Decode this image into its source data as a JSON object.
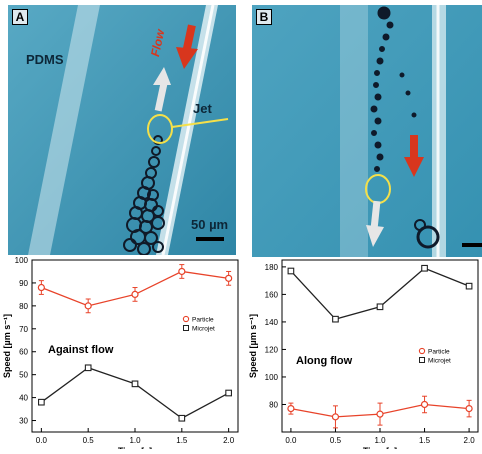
{
  "panels": [
    {
      "letter": "A",
      "labels": {
        "material": "PDMS",
        "flow": "Flow",
        "jet": "Jet",
        "scale": "50 µm"
      }
    },
    {
      "letter": "B"
    }
  ],
  "colors": {
    "particle": "#e8432a",
    "microjet": "#222222",
    "flow_arrow": "#d8361d",
    "jet_arrow": "#e6e6e6",
    "highlight": "#f4e04a"
  },
  "chart_data": [
    {
      "type": "line",
      "annotation": "Against flow",
      "xlabel": "Time [s]",
      "ylabel": "Speed [µm s⁻¹]",
      "x": [
        0.0,
        0.5,
        1.0,
        1.5,
        2.0
      ],
      "xlim": [
        -0.1,
        2.1
      ],
      "ylim": [
        25,
        100
      ],
      "xticks": [
        "0.0",
        "0.5",
        "1.0",
        "1.5",
        "2.0"
      ],
      "yticks": [
        30,
        40,
        50,
        60,
        70,
        80,
        90,
        100
      ],
      "legend_position": "top-right",
      "series": [
        {
          "name": "Particle",
          "marker": "circle",
          "values": [
            88,
            80,
            85,
            95,
            92
          ],
          "errors": [
            3,
            3,
            3,
            3,
            3
          ]
        },
        {
          "name": "Microjet",
          "marker": "square",
          "values": [
            38,
            53,
            46,
            31,
            42
          ]
        }
      ]
    },
    {
      "type": "line",
      "annotation": "Along flow",
      "xlabel": "Time [s]",
      "ylabel": "Speed [µm s⁻¹]",
      "x": [
        0.0,
        0.5,
        1.0,
        1.5,
        2.0
      ],
      "xlim": [
        -0.1,
        2.1
      ],
      "ylim": [
        60,
        185
      ],
      "xticks": [
        "0.0",
        "0.5",
        "1.0",
        "1.5",
        "2.0"
      ],
      "yticks": [
        80,
        100,
        120,
        140,
        160,
        180
      ],
      "legend_position": "right",
      "series": [
        {
          "name": "Particle",
          "marker": "circle",
          "values": [
            77,
            71,
            73,
            80,
            77
          ],
          "errors": [
            4,
            8,
            8,
            6,
            6
          ]
        },
        {
          "name": "Microjet",
          "marker": "square",
          "values": [
            177,
            142,
            151,
            179,
            166
          ]
        }
      ]
    }
  ]
}
